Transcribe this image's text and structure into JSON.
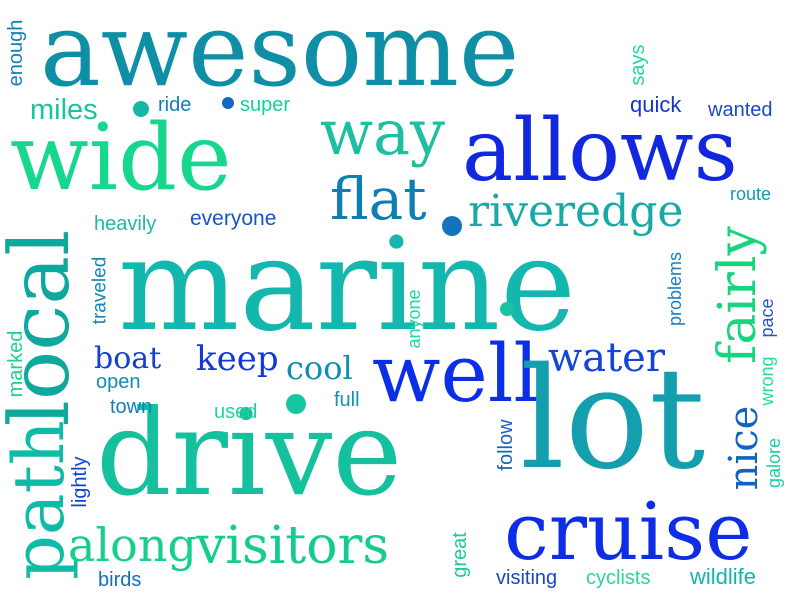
{
  "words": [
    {
      "text": "awesome",
      "color": "#0e8fa6"
    },
    {
      "text": "wide",
      "color": "#17d68d"
    },
    {
      "text": "allows",
      "color": "#1128e0"
    },
    {
      "text": "way",
      "color": "#1cbfa0"
    },
    {
      "text": "flat",
      "color": "#0f7fb0"
    },
    {
      "text": "riveredge",
      "color": "#17a9a5"
    },
    {
      "text": "marine",
      "color": "#13b7ad"
    },
    {
      "text": "local",
      "color": "#0ea89c"
    },
    {
      "text": "fairly",
      "color": "#15d57f"
    },
    {
      "text": "well",
      "color": "#0b2fe8"
    },
    {
      "text": "water",
      "color": "#1245d8"
    },
    {
      "text": "lot",
      "color": "#139fae"
    },
    {
      "text": "drive",
      "color": "#15c09d"
    },
    {
      "text": "path",
      "color": "#0fbba7"
    },
    {
      "text": "cruise",
      "color": "#0d2de6"
    },
    {
      "text": "visitors",
      "color": "#15cc90"
    },
    {
      "text": "along",
      "color": "#15cf8b"
    },
    {
      "text": "nice",
      "color": "#1262bf"
    },
    {
      "text": "keep",
      "color": "#1238d8"
    },
    {
      "text": "cool",
      "color": "#118fb3"
    },
    {
      "text": "boat",
      "color": "#1140d3"
    },
    {
      "text": "miles",
      "color": "#1ac59b"
    },
    {
      "text": "ride",
      "color": "#137bb6"
    },
    {
      "text": "super",
      "color": "#15cf9e"
    },
    {
      "text": "quick",
      "color": "#1336d3"
    },
    {
      "text": "wanted",
      "color": "#1a49c7"
    },
    {
      "text": "says",
      "color": "#1dd99c"
    },
    {
      "text": "enough",
      "color": "#127fbd"
    },
    {
      "text": "heavily",
      "color": "#1fb99f"
    },
    {
      "text": "everyone",
      "color": "#1455c9"
    },
    {
      "text": "route",
      "color": "#0f9ab5"
    },
    {
      "text": "problems",
      "color": "#1a7bbf"
    },
    {
      "text": "pace",
      "color": "#2a52c8"
    },
    {
      "text": "wrong",
      "color": "#1ee08e"
    },
    {
      "text": "galore",
      "color": "#1bcaa4"
    },
    {
      "text": "wildlife",
      "color": "#15b3ac"
    },
    {
      "text": "cyclists",
      "color": "#2bd6a0"
    },
    {
      "text": "visiting",
      "color": "#1649c6"
    },
    {
      "text": "birds",
      "color": "#1a6db5"
    },
    {
      "text": "great",
      "color": "#1bc99a"
    },
    {
      "text": "follow",
      "color": "#1a62bf"
    },
    {
      "text": "anyone",
      "color": "#21d6a5"
    },
    {
      "text": "traveled",
      "color": "#1486b3"
    },
    {
      "text": "marked",
      "color": "#1ccf92"
    },
    {
      "text": "lightly",
      "color": "#1245cf"
    },
    {
      "text": "open",
      "color": "#118cb3"
    },
    {
      "text": "town",
      "color": "#137cba"
    },
    {
      "text": "used",
      "color": "#1fd39c"
    },
    {
      "text": "full",
      "color": "#1292b4"
    }
  ],
  "dot_colors": [
    "#17b6a8",
    "#1572be",
    "#1468c3",
    "#17c6a0",
    "#18c4a2"
  ]
}
